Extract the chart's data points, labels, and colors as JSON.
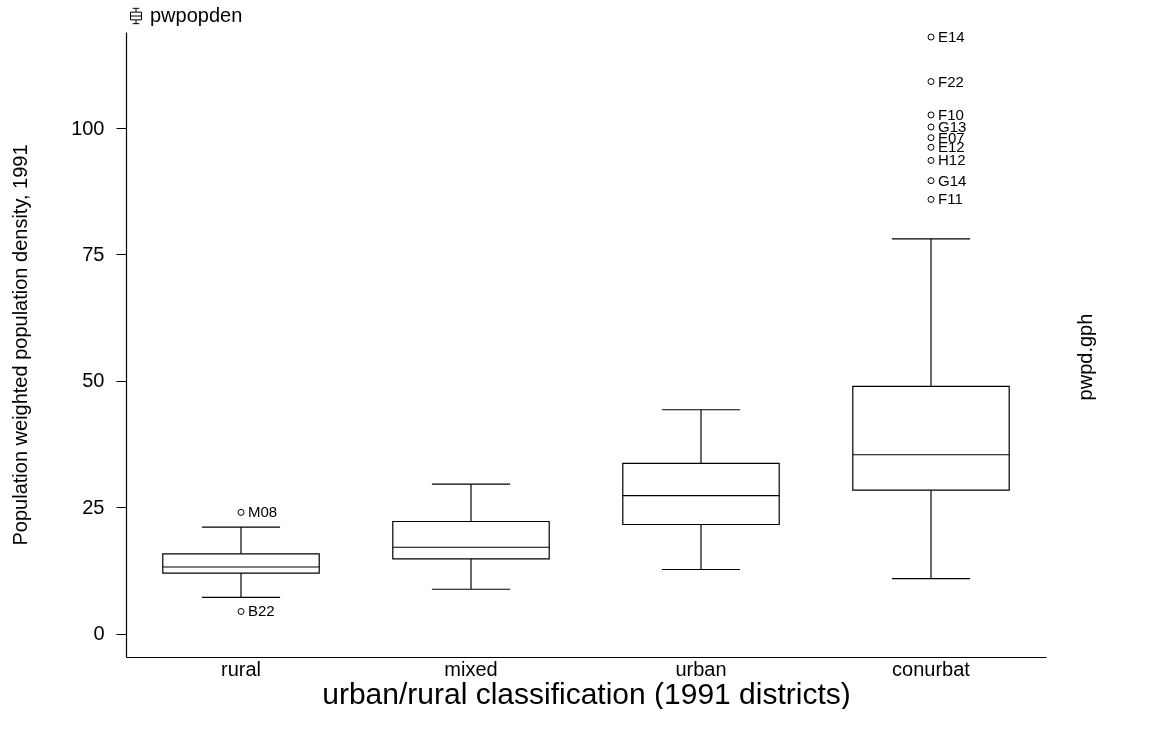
{
  "chart_data": {
    "type": "box",
    "xlabel": "urban/rural classification (1991 districts)",
    "ylabel": "Population weighted population density, 1991",
    "categories": [
      "rural",
      "mixed",
      "urban",
      "conurbat"
    ],
    "series": [
      {
        "name": "pwpopden",
        "color": "#000000",
        "boxes": [
          {
            "low": 7.2,
            "q1": 12.0,
            "median": 13.2,
            "q3": 15.8,
            "high": 21.1,
            "outliers": [
              24.0,
              4.4
            ]
          },
          {
            "low": 8.8,
            "q1": 14.8,
            "median": 17.1,
            "q3": 22.2,
            "high": 29.6
          },
          {
            "low": 12.7,
            "q1": 21.6,
            "median": 27.3,
            "q3": 33.7,
            "high": 44.3
          },
          {
            "low": 10.9,
            "q1": 28.4,
            "median": 35.4,
            "q3": 48.9,
            "high": 78.1,
            "outliers": [
              118.0,
              109.2,
              102.6,
              100.2,
              98.1,
              96.2,
              93.6,
              89.6,
              85.9
            ]
          }
        ]
      }
    ],
    "ylim": [
      -4.6,
      119
    ],
    "yticks": [
      0,
      25,
      50,
      75,
      100
    ],
    "grid": false,
    "legend": "top left",
    "annotations": [
      "M08",
      "B22",
      "E14",
      "F22",
      "F10",
      "G13",
      "E07",
      "E12",
      "H12",
      "G14",
      "F11",
      "pwpd.gph"
    ]
  }
}
